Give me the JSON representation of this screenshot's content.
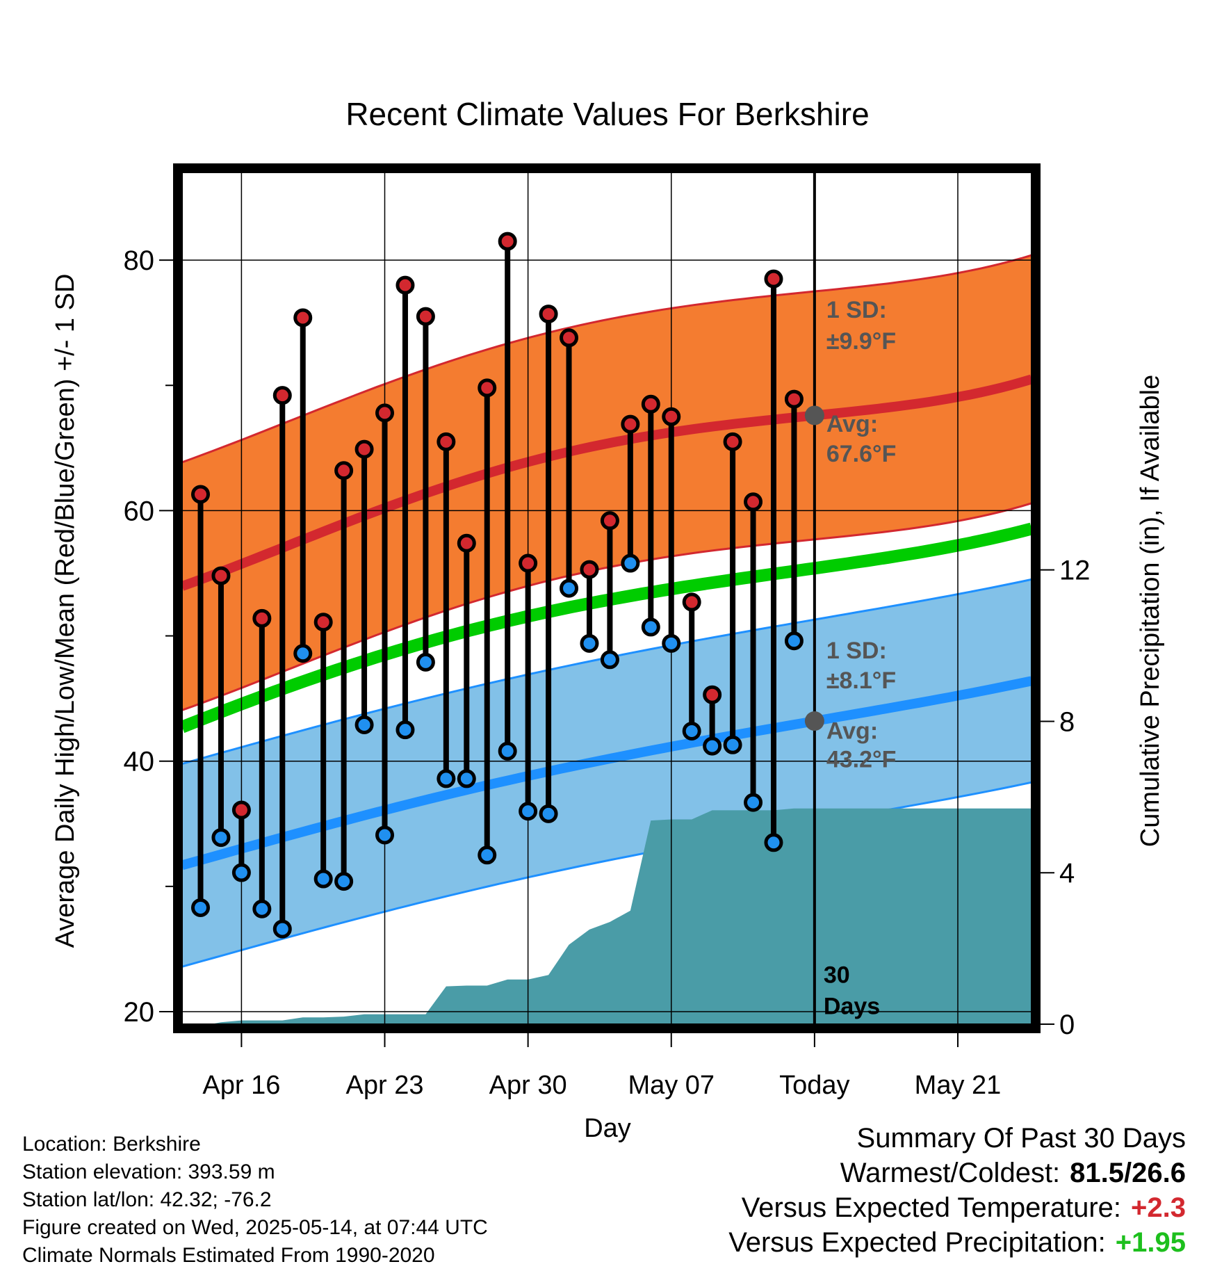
{
  "colors": {
    "high_band": "#f47c30",
    "high_line": "#d3282f",
    "low_band": "#82c1e8",
    "low_line": "#1e90ff",
    "mean_line": "#00cc00",
    "precip_fill": "#4a9ca7",
    "high_marker": "#d3282f",
    "low_marker": "#2090f0",
    "annotation": "#555555",
    "positive_temp": "#d3282f",
    "positive_precip": "#1dbf1d"
  },
  "chart_data": {
    "type": "line",
    "title": "Recent Climate Values For Berkshire",
    "xlabel": "Day",
    "ylabel": "Average Daily High/Low/Mean (Red/Blue/Green) +/- 1 SD",
    "y2label": "Cumulative Precipitation (in), If Available",
    "xlim": [
      -0.9,
      40.6
    ],
    "ylim": [
      19,
      87
    ],
    "y2lim": [
      0,
      22.5
    ],
    "yticks": [
      20,
      40,
      60,
      80
    ],
    "yminor": [
      30,
      50,
      70
    ],
    "y2ticks": [
      0,
      4,
      8,
      12
    ],
    "x_ticks": [
      {
        "pos": 2,
        "label": "Apr 16"
      },
      {
        "pos": 9,
        "label": "Apr 23"
      },
      {
        "pos": 16,
        "label": "Apr 30"
      },
      {
        "pos": 23,
        "label": "May 07"
      },
      {
        "pos": 30,
        "label": "Today"
      },
      {
        "pos": 37,
        "label": "May 21"
      }
    ],
    "normals": {
      "x": [
        0,
        10,
        20,
        30,
        40
      ],
      "high_avg": [
        54.5,
        60.8,
        65.4,
        67.6,
        70.2
      ],
      "high_sd": 9.9,
      "low_avg": [
        32.1,
        36.5,
        40.2,
        43.2,
        46.2
      ],
      "low_sd": 8.1,
      "mean": [
        43.3,
        49.0,
        52.9,
        55.4,
        58.3
      ]
    },
    "days": [
      0,
      1,
      2,
      3,
      4,
      5,
      6,
      7,
      8,
      9,
      10,
      11,
      12,
      13,
      14,
      15,
      16,
      17,
      18,
      19,
      20,
      21,
      22,
      23,
      24,
      25,
      26,
      27,
      28,
      29
    ],
    "highs": [
      61.3,
      54.8,
      36.1,
      51.4,
      69.2,
      75.4,
      51.1,
      63.2,
      64.9,
      67.8,
      78.0,
      75.5,
      65.5,
      57.4,
      69.8,
      81.5,
      55.8,
      75.7,
      73.8,
      55.3,
      59.2,
      66.9,
      68.5,
      67.5,
      52.7,
      45.3,
      65.5,
      60.7,
      78.5,
      68.9
    ],
    "lows": [
      28.3,
      33.9,
      31.1,
      28.2,
      26.6,
      48.6,
      30.6,
      30.4,
      42.9,
      34.1,
      42.5,
      47.9,
      38.6,
      38.6,
      32.5,
      40.8,
      36.0,
      35.8,
      53.8,
      49.4,
      48.1,
      55.8,
      50.7,
      49.4,
      42.4,
      41.2,
      41.3,
      36.7,
      33.5,
      49.6
    ],
    "precip_cumulative": {
      "x": [
        -0.7,
        0.5,
        1,
        2,
        3,
        4,
        5,
        6,
        7,
        8,
        9,
        10,
        11,
        12,
        13,
        14,
        15,
        16,
        17,
        18,
        19,
        20,
        21,
        22,
        23,
        24,
        25,
        26,
        27,
        28,
        29,
        40.6
      ],
      "y": [
        0.0,
        0.0,
        0.05,
        0.1,
        0.1,
        0.1,
        0.18,
        0.18,
        0.2,
        0.26,
        0.26,
        0.26,
        0.26,
        1.0,
        1.02,
        1.02,
        1.18,
        1.18,
        1.3,
        2.1,
        2.5,
        2.7,
        3.0,
        5.38,
        5.41,
        5.41,
        5.65,
        5.65,
        5.65,
        5.65,
        5.7,
        5.7
      ]
    },
    "today_pos": 30,
    "annotations": {
      "high_sd": "1 SD:",
      "high_sd_value": "±9.9°F",
      "high_avg": "Avg:",
      "high_avg_value": "67.6°F",
      "low_sd": "1 SD:",
      "low_sd_value": "±8.1°F",
      "low_avg": "Avg:",
      "low_avg_value": "43.2°F",
      "days_number": "30",
      "days_word": "Days"
    }
  },
  "info": {
    "location": "Location: Berkshire",
    "elevation": "Station elevation: 393.59 m",
    "latlon": "Station lat/lon: 42.32; -76.2",
    "created": "Figure created on Wed, 2025-05-14, at 07:44 UTC",
    "normals": "Climate Normals Estimated From 1990-2020"
  },
  "summary": {
    "heading": "Summary Of Past 30 Days",
    "warmest_coldest_label": "Warmest/Coldest:",
    "warmest_coldest_value": "81.5/26.6",
    "temp_label": "Versus Expected Temperature:",
    "temp_value": "+2.3",
    "precip_label": "Versus Expected Precipitation:",
    "precip_value": "+1.95"
  }
}
